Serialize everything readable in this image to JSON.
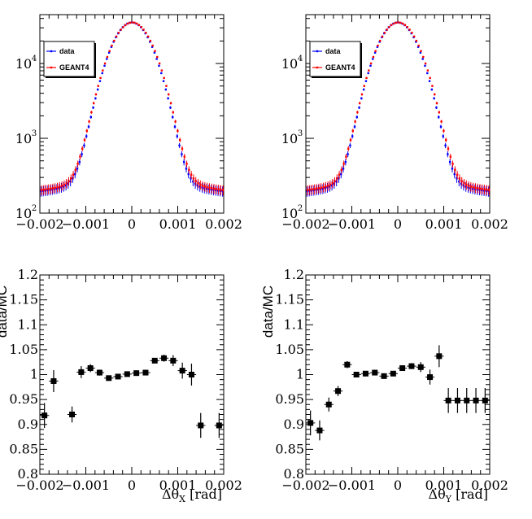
{
  "chart_data": [
    {
      "id": "top-left",
      "type": "scatter",
      "yscale": "log",
      "xlim": [
        -0.002,
        0.002
      ],
      "ylim": [
        100,
        45000
      ],
      "xlabel": "",
      "ylabel": "",
      "xticks": [
        "-0.002",
        "-0.001",
        "0",
        "0.001",
        "0.002"
      ],
      "yticks": [
        {
          "base": "10",
          "exp": "2"
        },
        {
          "base": "10",
          "exp": "3"
        },
        {
          "base": "10",
          "exp": "4"
        }
      ],
      "legend": {
        "position": "top-left",
        "entries": [
          {
            "label": "data",
            "color": "#0000ff"
          },
          {
            "label": "GEANT4",
            "color": "#ff0000"
          }
        ]
      },
      "series": [
        {
          "name": "data",
          "color": "#0000ff",
          "model": "peak",
          "peak": 35000,
          "sigma": 0.00036,
          "tail": 240,
          "tail_slope": 950,
          "n_points": 81
        },
        {
          "name": "GEANT4",
          "color": "#ff0000",
          "model": "peak",
          "peak": 35000,
          "sigma": 0.00037,
          "tail": 260,
          "tail_slope": 900,
          "n_points": 81
        }
      ]
    },
    {
      "id": "top-right",
      "type": "scatter",
      "yscale": "log",
      "xlim": [
        -0.002,
        0.002
      ],
      "ylim": [
        100,
        45000
      ],
      "xlabel": "",
      "ylabel": "",
      "xticks": [
        "-0.002",
        "-0.001",
        "0",
        "0.001",
        "0.002"
      ],
      "yticks": [
        {
          "base": "10",
          "exp": "2"
        },
        {
          "base": "10",
          "exp": "3"
        },
        {
          "base": "10",
          "exp": "4"
        }
      ],
      "legend": {
        "position": "top-left",
        "entries": [
          {
            "label": "data",
            "color": "#0000ff"
          },
          {
            "label": "GEANT4",
            "color": "#ff0000"
          }
        ]
      },
      "series": [
        {
          "name": "data",
          "color": "#0000ff",
          "model": "peak",
          "peak": 35000,
          "sigma": 0.00036,
          "tail": 240,
          "tail_slope": 950,
          "n_points": 81
        },
        {
          "name": "GEANT4",
          "color": "#ff0000",
          "model": "peak",
          "peak": 35000,
          "sigma": 0.00037,
          "tail": 260,
          "tail_slope": 900,
          "n_points": 81
        }
      ]
    },
    {
      "id": "bottom-left",
      "type": "scatter",
      "yscale": "linear",
      "xlim": [
        -0.002,
        0.002
      ],
      "ylim": [
        0.8,
        1.2
      ],
      "xlabel": {
        "prefix": "Δθ",
        "sub": "X",
        "suffix": " [rad]"
      },
      "ylabel": "data/MC",
      "xticks": [
        "-0.002",
        "-0.001",
        "0",
        "0.001",
        "0.002"
      ],
      "yticks": [
        "0.8",
        "0.85",
        "0.9",
        "0.95",
        "1",
        "1.05",
        "1.1",
        "1.15",
        "1.2"
      ],
      "bin_width": 0.0002,
      "series": [
        {
          "name": "data/MC",
          "color": "#000000",
          "x": [
            -0.0019,
            -0.0017,
            -0.0013,
            -0.0011,
            -0.0009,
            -0.0007,
            -0.0005,
            -0.0003,
            -0.0001,
            0.0001,
            0.0003,
            0.0005,
            0.0007,
            0.0009,
            0.0011,
            0.0013,
            0.0015,
            0.0019
          ],
          "values": [
            0.918,
            0.987,
            0.92,
            1.005,
            1.013,
            1.004,
            0.993,
            0.996,
            1.001,
            1.003,
            1.004,
            1.028,
            1.033,
            1.028,
            1.008,
            1.0,
            0.898,
            0.898
          ],
          "errors": [
            0.025,
            0.022,
            0.016,
            0.012,
            0.008,
            0.006,
            0.004,
            0.003,
            0.003,
            0.003,
            0.003,
            0.004,
            0.007,
            0.011,
            0.016,
            0.022,
            0.025,
            0.025
          ]
        }
      ]
    },
    {
      "id": "bottom-right",
      "type": "scatter",
      "yscale": "linear",
      "xlim": [
        -0.002,
        0.002
      ],
      "ylim": [
        0.8,
        1.2
      ],
      "xlabel": {
        "prefix": "Δθ",
        "sub": "Y",
        "suffix": " [rad]"
      },
      "ylabel": "data/MC",
      "xticks": [
        "-0.002",
        "-0.001",
        "0",
        "0.001",
        "0.002"
      ],
      "yticks": [
        "0.8",
        "0.85",
        "0.9",
        "0.95",
        "1",
        "1.05",
        "1.1",
        "1.15",
        "1.2"
      ],
      "bin_width": 0.0002,
      "series": [
        {
          "name": "data/MC",
          "color": "#000000",
          "x": [
            -0.0019,
            -0.0017,
            -0.0015,
            -0.0013,
            -0.0011,
            -0.0009,
            -0.0007,
            -0.0005,
            -0.0003,
            -0.0001,
            0.0001,
            0.0003,
            0.0005,
            0.0007,
            0.0009,
            0.0011,
            0.0013,
            0.0015,
            0.0017,
            0.0019
          ],
          "values": [
            0.903,
            0.888,
            0.94,
            0.967,
            1.02,
            1.0,
            1.002,
            1.004,
            0.997,
            1.002,
            1.013,
            1.017,
            1.015,
            0.995,
            1.037,
            0.948,
            0.948,
            0.948,
            0.948,
            0.948
          ],
          "errors": [
            0.025,
            0.02,
            0.014,
            0.01,
            0.007,
            0.005,
            0.004,
            0.003,
            0.003,
            0.003,
            0.004,
            0.006,
            0.01,
            0.015,
            0.022,
            0.025,
            0.025,
            0.025,
            0.025,
            0.025
          ]
        }
      ]
    }
  ]
}
